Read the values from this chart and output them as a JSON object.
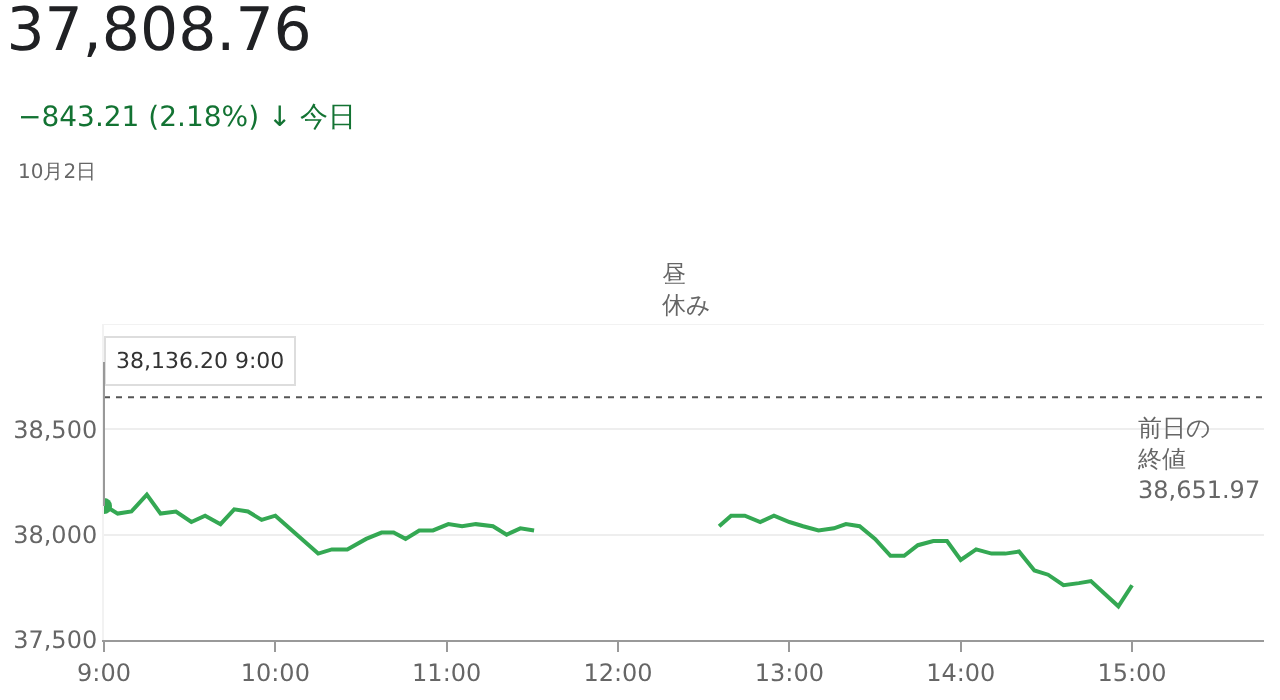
{
  "chart_data": {
    "type": "line",
    "title": "37,808.76",
    "subtitle": "−843.21 (2.18%) ↓ 今日",
    "annotations": [
      "10月2日",
      "昼休み",
      {
        "text": "38,136.20 9:00",
        "x": 9,
        "y": 38136.2
      }
    ],
    "x": [
      9.0,
      9.08,
      9.16,
      9.25,
      9.33,
      9.42,
      9.51,
      9.59,
      9.68,
      9.76,
      9.84,
      9.92,
      10.0,
      10.25,
      10.33,
      10.42,
      10.53,
      10.62,
      10.69,
      10.76,
      10.84,
      10.92,
      11.01,
      11.09,
      11.17,
      11.27,
      11.35,
      11.43,
      11.51,
      12.0,
      12.59,
      12.66,
      12.74,
      12.83,
      12.91,
      13.0,
      13.08,
      13.17,
      13.26,
      13.33,
      13.41,
      13.5,
      13.59,
      13.67,
      13.75,
      13.84,
      13.92,
      14.0,
      14.09,
      14.18,
      14.26,
      14.34,
      14.43,
      14.51,
      14.6,
      14.69,
      14.76,
      14.84,
      14.92,
      15.0
    ],
    "series": [
      {
        "color": "#34a853",
        "values": [
          38140,
          38100,
          38110,
          38190,
          38100,
          38110,
          38060,
          38090,
          38050,
          38120,
          38110,
          38070,
          38090,
          37910,
          37930,
          37930,
          37980,
          38010,
          38010,
          37980,
          38020,
          38020,
          38050,
          38040,
          38050,
          38040,
          38000,
          38030,
          38020,
          null,
          38040,
          38090,
          38090,
          38060,
          38090,
          38060,
          38040,
          38020,
          38030,
          38050,
          38040,
          37980,
          37900,
          37900,
          37950,
          37970,
          37970,
          37880,
          37930,
          37910,
          37910,
          37920,
          37830,
          37810,
          37760,
          37770,
          37780,
          37720,
          37660,
          37760
        ]
      }
    ],
    "xlim": [
      9,
      15.77
    ],
    "ylim": [
      37500,
      39000
    ],
    "xticks": [
      {
        "value": 9,
        "label": "9:00"
      },
      {
        "value": 10,
        "label": "10:00"
      },
      {
        "value": 11,
        "label": "11:00"
      },
      {
        "value": 12,
        "label": "12:00"
      },
      {
        "value": 13,
        "label": "13:00"
      },
      {
        "value": 14,
        "label": "14:00"
      },
      {
        "value": 15,
        "label": "15:00"
      }
    ],
    "yticks": [
      {
        "value": 37500,
        "label": "37,500"
      },
      {
        "value": 38000,
        "label": "38,000"
      },
      {
        "value": 38500,
        "label": "38,500"
      }
    ],
    "ref_lines": [
      {
        "axis": "y",
        "value": 38651.97,
        "label": "前日の終値 38,651.97",
        "color": "#555555",
        "line_style": "dotted"
      }
    ],
    "grid": "y",
    "legend": false,
    "marker": "none",
    "line_style": "solid"
  }
}
